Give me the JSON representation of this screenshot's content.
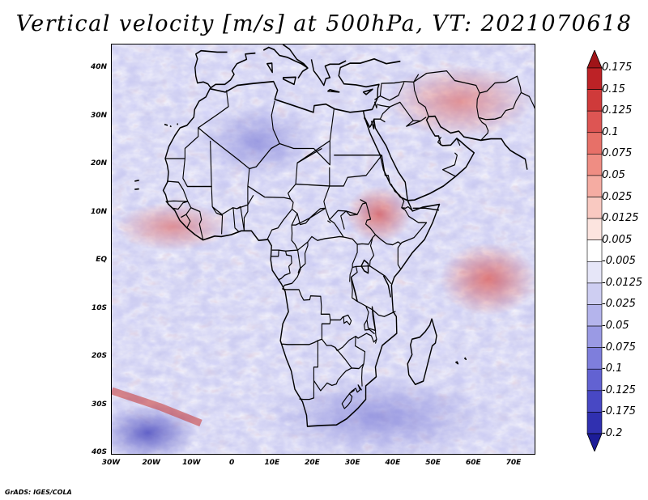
{
  "title": "Vertical velocity [m/s] at 500hPa, VT: 2021070618",
  "credit": "GrADS: IGES/COLA",
  "map": {
    "lon_range": [
      -30,
      75
    ],
    "lat_range": [
      -40,
      45
    ],
    "lat_labels": [
      "40N",
      "30N",
      "20N",
      "10N",
      "EQ",
      "10S",
      "20S",
      "30S",
      "40S"
    ],
    "lon_labels": [
      "30W",
      "20W",
      "10W",
      "0",
      "10E",
      "20E",
      "30E",
      "40E",
      "50E",
      "60E",
      "70E"
    ]
  },
  "colorbar": {
    "labels": [
      "0.175",
      "0.15",
      "0.125",
      "0.1",
      "0.075",
      "0.05",
      "0.025",
      "0.0125",
      "0.005",
      "-0.005",
      "-0.0125",
      "-0.025",
      "-0.05",
      "-0.075",
      "-0.1",
      "-0.125",
      "-0.175",
      "-0.2"
    ],
    "colors": [
      "#a01418",
      "#bd2226",
      "#cf3a3a",
      "#dd5553",
      "#e77068",
      "#ef8d83",
      "#f5aca2",
      "#f9c9c1",
      "#fce4df",
      "#ffffff",
      "#e6e6f8",
      "#cecef2",
      "#b4b4ec",
      "#9a9ae4",
      "#7e7edc",
      "#6262d2",
      "#4848c4",
      "#3030b0",
      "#1c1c98"
    ]
  }
}
